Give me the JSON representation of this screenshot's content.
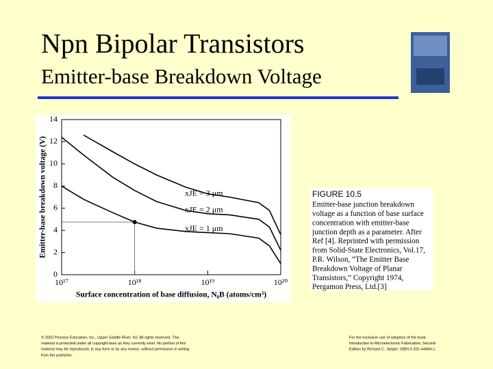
{
  "slide": {
    "title": "Npn Bipolar Transistors",
    "subtitle": "Emitter-base Breakdown Voltage",
    "caption": {
      "heading": "FIGURE 10.5",
      "lines": [
        "Emitter-base junction breakdown",
        "voltage as a function of base surface",
        "concentration with emitter-base",
        "junction depth as a parameter. After",
        "Ref [4]. Reprinted with permission",
        "from Solid-State Electronics, Vol.17,",
        "P.R. Wilson, “The Emitter Base",
        "Breakdown Voltage of Planar",
        "Transistors,” Copyright 1974,",
        "Pergamon Press, Ltd.[3]"
      ]
    },
    "footer_left": [
      "© 2002 Pearson Education, Inc., Upper Saddle River, NJ. All rights reserved. This",
      "material is protected under all copyright laws as they currently exist. No portion of this",
      "material may be reproduced, in any form or by any means, without permission in writing",
      "from the publisher."
    ],
    "footer_right": [
      "For the exclusive use of adopters of the book",
      "Introduction to Microelectronic Fabrication, Second",
      "Edition by Richard C. Jaeger. ISBN 0-201-44494-1."
    ]
  },
  "chart_data": {
    "type": "line",
    "x_label": "Surface concentration of base diffusion, N₀B (atoms/cm³)",
    "y_label": "Emitter-base breakdown voltage (V)",
    "x": [
      1e+17,
      2e+17,
      5e+17,
      1e+18,
      2e+18,
      5e+18,
      1e+19,
      2e+19,
      5e+19,
      7e+19,
      1e+20
    ],
    "series": [
      {
        "name": "xJE = 3 μm",
        "color": "#000000",
        "values": [
          null,
          12.6,
          11.1,
          10.0,
          9.0,
          7.9,
          7.3,
          7.0,
          6.5,
          5.8,
          3.6
        ]
      },
      {
        "name": "xJE = 2 μm",
        "color": "#000000",
        "values": [
          12.4,
          10.8,
          8.8,
          7.6,
          6.6,
          5.8,
          5.5,
          5.4,
          5.0,
          4.3,
          2.2
        ]
      },
      {
        "name": "xJE = 1 μm",
        "color": "#000000",
        "values": [
          8.0,
          6.8,
          5.6,
          4.75,
          4.2,
          3.9,
          3.8,
          3.7,
          3.3,
          2.6,
          1.0
        ]
      }
    ],
    "marker": {
      "x": 1e+18,
      "y": 4.75
    },
    "xlim": [
      1e+17,
      1e+20
    ],
    "xlog": true,
    "xticks": [
      {
        "value": 1e+17,
        "label": "10¹⁷"
      },
      {
        "value": 1e+18,
        "label": "10¹⁸"
      },
      {
        "value": 1e+19,
        "label": "10¹⁹"
      },
      {
        "value": 1e+20,
        "label": "10²⁰"
      }
    ],
    "ylim": [
      0,
      14
    ],
    "yticks": [
      0,
      2,
      4,
      6,
      8,
      10,
      12,
      14
    ],
    "grid": false
  }
}
